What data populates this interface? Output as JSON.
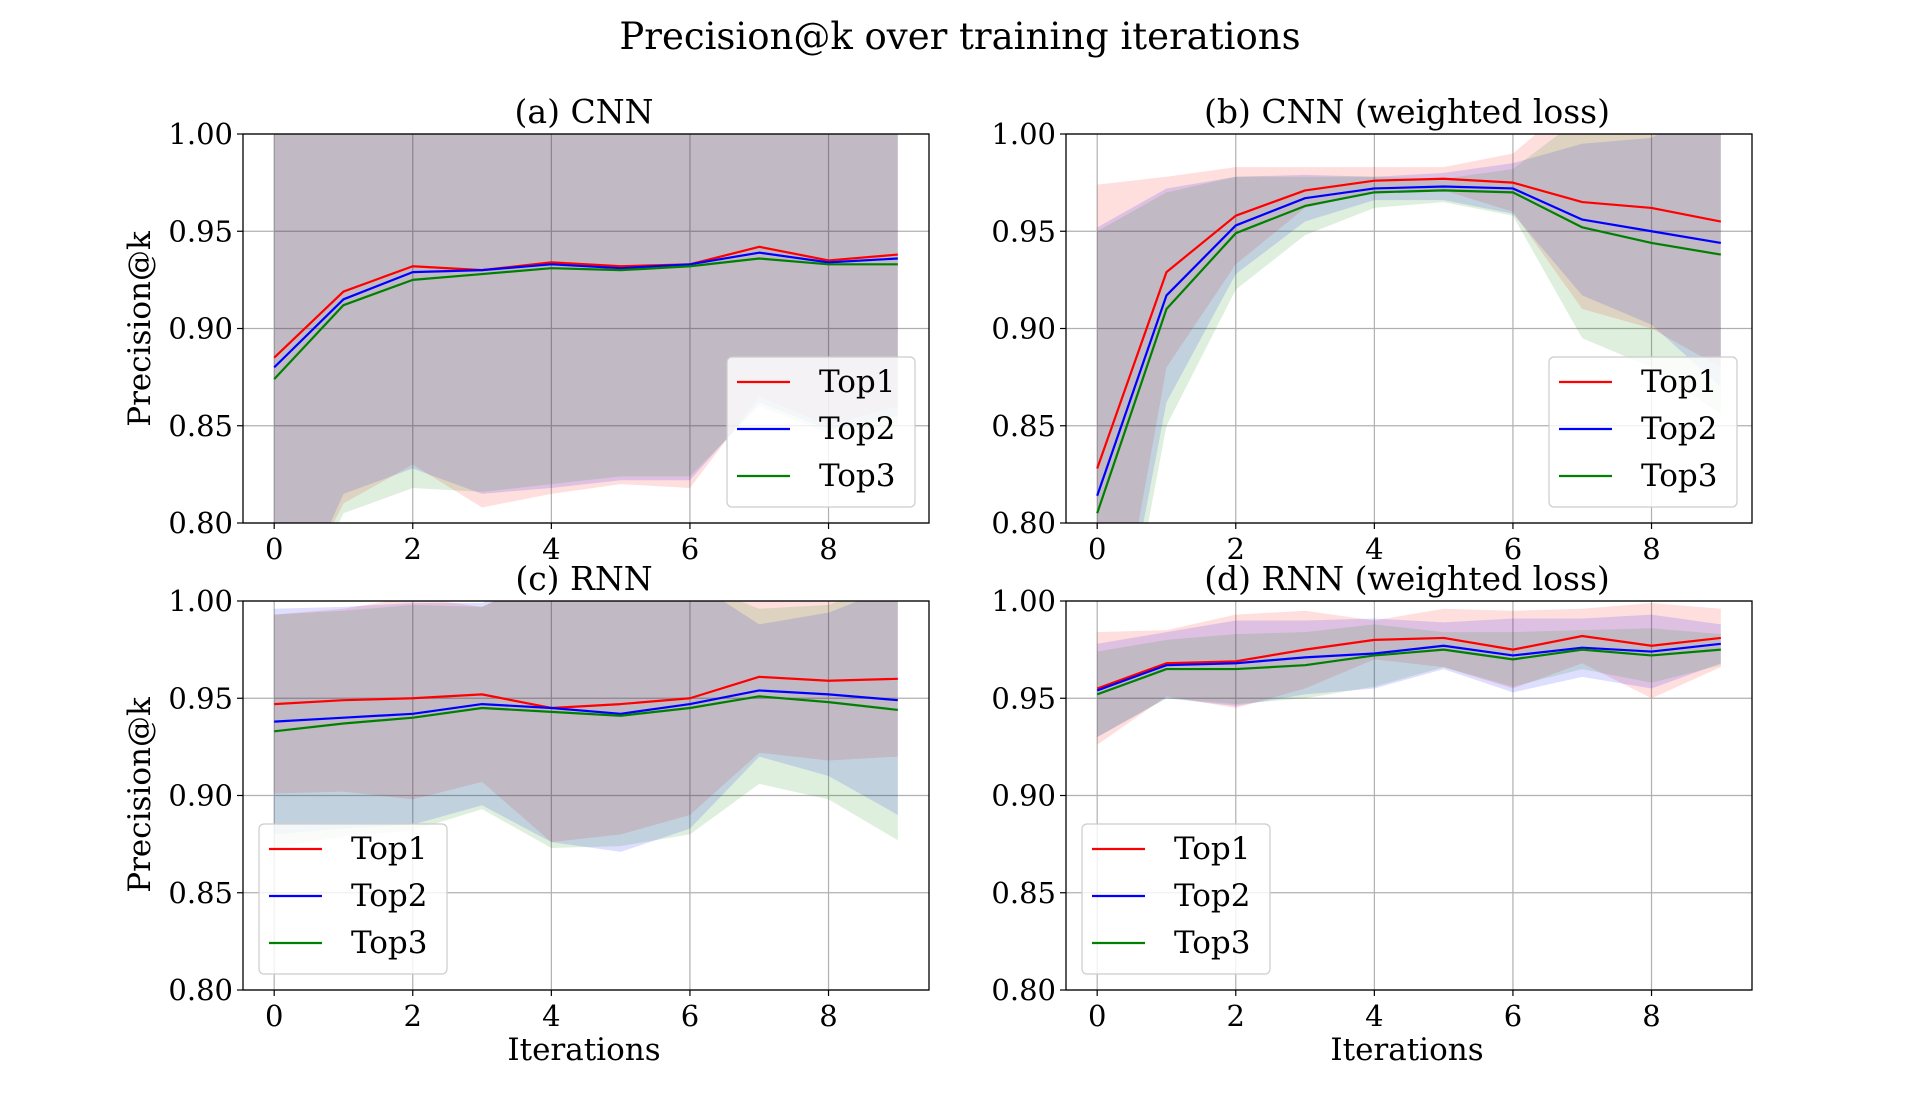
{
  "figure": {
    "title": "Precision@k over training iterations"
  },
  "chart_data": [
    {
      "type": "line",
      "title": "(a) CNN",
      "xlabel": "",
      "ylabel": "Precision@k",
      "x": [
        0,
        1,
        2,
        3,
        4,
        5,
        6,
        7,
        8,
        9
      ],
      "xticks": [
        0,
        2,
        4,
        6,
        8
      ],
      "xlim": [
        -0.45,
        9.45
      ],
      "ylim": [
        0.8,
        1.0
      ],
      "yticks": [
        0.8,
        0.85,
        0.9,
        0.95,
        1.0
      ],
      "grid": true,
      "legend": "lower-right",
      "series": [
        {
          "name": "Top1",
          "color": "#ff0000",
          "values": [
            0.885,
            0.919,
            0.932,
            0.93,
            0.934,
            0.932,
            0.933,
            0.942,
            0.935,
            0.938
          ],
          "lower": [
            0.74,
            0.81,
            0.83,
            0.808,
            0.815,
            0.82,
            0.818,
            0.865,
            0.85,
            0.86
          ],
          "upper": [
            1.03,
            1.028,
            1.034,
            1.052,
            1.053,
            1.044,
            1.048,
            1.019,
            1.02,
            1.016
          ]
        },
        {
          "name": "Top2",
          "color": "#0000ff",
          "values": [
            0.88,
            0.915,
            0.929,
            0.93,
            0.933,
            0.931,
            0.933,
            0.939,
            0.934,
            0.936
          ],
          "lower": [
            0.735,
            0.815,
            0.828,
            0.815,
            0.818,
            0.822,
            0.822,
            0.862,
            0.848,
            0.855
          ],
          "upper": [
            1.025,
            1.015,
            1.03,
            1.045,
            1.048,
            1.04,
            1.044,
            1.016,
            1.02,
            1.017
          ]
        },
        {
          "name": "Top3",
          "color": "#008000",
          "values": [
            0.874,
            0.912,
            0.925,
            0.928,
            0.931,
            0.93,
            0.932,
            0.936,
            0.933,
            0.933
          ],
          "lower": [
            0.73,
            0.805,
            0.818,
            0.816,
            0.82,
            0.824,
            0.824,
            0.86,
            0.846,
            0.85
          ],
          "upper": [
            1.018,
            1.019,
            1.032,
            1.04,
            1.042,
            1.036,
            1.04,
            1.012,
            1.02,
            1.016
          ]
        }
      ]
    },
    {
      "type": "line",
      "title": "(b) CNN (weighted loss)",
      "xlabel": "",
      "ylabel": "",
      "x": [
        0,
        1,
        2,
        3,
        4,
        5,
        6,
        7,
        8,
        9
      ],
      "xticks": [
        0,
        2,
        4,
        6,
        8
      ],
      "xlim": [
        -0.45,
        9.45
      ],
      "ylim": [
        0.8,
        1.0
      ],
      "yticks": [
        0.8,
        0.85,
        0.9,
        0.95,
        1.0
      ],
      "grid": true,
      "legend": "lower-right",
      "series": [
        {
          "name": "Top1",
          "color": "#ff0000",
          "values": [
            0.828,
            0.929,
            0.958,
            0.971,
            0.976,
            0.977,
            0.975,
            0.965,
            0.962,
            0.955
          ],
          "lower": [
            0.682,
            0.88,
            0.933,
            0.962,
            0.97,
            0.971,
            0.96,
            0.91,
            0.9,
            0.88
          ],
          "upper": [
            0.974,
            0.978,
            0.983,
            0.983,
            0.983,
            0.983,
            0.99,
            1.02,
            1.024,
            1.03
          ]
        },
        {
          "name": "Top2",
          "color": "#0000ff",
          "values": [
            0.814,
            0.917,
            0.953,
            0.967,
            0.972,
            0.973,
            0.972,
            0.956,
            0.95,
            0.944
          ],
          "lower": [
            0.676,
            0.862,
            0.928,
            0.955,
            0.966,
            0.966,
            0.959,
            0.917,
            0.902,
            0.87
          ],
          "upper": [
            0.952,
            0.972,
            0.978,
            0.979,
            0.978,
            0.98,
            0.985,
            0.995,
            0.998,
            1.018
          ]
        },
        {
          "name": "Top3",
          "color": "#008000",
          "values": [
            0.805,
            0.91,
            0.949,
            0.963,
            0.97,
            0.971,
            0.97,
            0.952,
            0.944,
            0.938
          ],
          "lower": [
            0.66,
            0.85,
            0.92,
            0.948,
            0.962,
            0.965,
            0.958,
            0.895,
            0.88,
            0.856
          ],
          "upper": [
            0.95,
            0.97,
            0.978,
            0.978,
            0.978,
            0.977,
            0.982,
            1.009,
            1.008,
            1.02
          ]
        }
      ]
    },
    {
      "type": "line",
      "title": "(c) RNN",
      "xlabel": "Iterations",
      "ylabel": "Precision@k",
      "x": [
        0,
        1,
        2,
        3,
        4,
        5,
        6,
        7,
        8,
        9
      ],
      "xticks": [
        0,
        2,
        4,
        6,
        8
      ],
      "xlim": [
        -0.45,
        9.45
      ],
      "ylim": [
        0.8,
        1.0
      ],
      "yticks": [
        0.8,
        0.85,
        0.9,
        0.95,
        1.0
      ],
      "grid": true,
      "legend": "lower-left",
      "series": [
        {
          "name": "Top1",
          "color": "#ff0000",
          "values": [
            0.947,
            0.949,
            0.95,
            0.952,
            0.945,
            0.947,
            0.95,
            0.961,
            0.959,
            0.96
          ],
          "lower": [
            0.901,
            0.902,
            0.898,
            0.907,
            0.876,
            0.88,
            0.89,
            0.922,
            0.918,
            0.92
          ],
          "upper": [
            0.993,
            0.996,
            1.002,
            0.997,
            1.014,
            1.014,
            1.01,
            1.0,
            1.0,
            1.0
          ]
        },
        {
          "name": "Top2",
          "color": "#0000ff",
          "values": [
            0.938,
            0.94,
            0.942,
            0.947,
            0.945,
            0.942,
            0.947,
            0.954,
            0.952,
            0.949
          ],
          "lower": [
            0.88,
            0.883,
            0.885,
            0.895,
            0.876,
            0.871,
            0.883,
            0.92,
            0.91,
            0.89
          ],
          "upper": [
            0.996,
            0.997,
            0.999,
            0.999,
            1.014,
            1.013,
            1.011,
            0.988,
            0.994,
            1.008
          ]
        },
        {
          "name": "Top3",
          "color": "#008000",
          "values": [
            0.933,
            0.937,
            0.94,
            0.945,
            0.943,
            0.941,
            0.945,
            0.951,
            0.948,
            0.944
          ],
          "lower": [
            0.873,
            0.879,
            0.882,
            0.893,
            0.873,
            0.874,
            0.88,
            0.906,
            0.898,
            0.877
          ],
          "upper": [
            0.993,
            0.995,
            0.998,
            0.997,
            1.013,
            1.008,
            1.01,
            0.996,
            0.998,
            1.011
          ]
        }
      ]
    },
    {
      "type": "line",
      "title": "(d) RNN (weighted loss)",
      "xlabel": "Iterations",
      "ylabel": "",
      "x": [
        0,
        1,
        2,
        3,
        4,
        5,
        6,
        7,
        8,
        9
      ],
      "xticks": [
        0,
        2,
        4,
        6,
        8
      ],
      "xlim": [
        -0.45,
        9.45
      ],
      "ylim": [
        0.8,
        1.0
      ],
      "yticks": [
        0.8,
        0.85,
        0.9,
        0.95,
        1.0
      ],
      "grid": true,
      "legend": "lower-left",
      "series": [
        {
          "name": "Top1",
          "color": "#ff0000",
          "values": [
            0.955,
            0.968,
            0.969,
            0.975,
            0.98,
            0.981,
            0.975,
            0.982,
            0.977,
            0.981
          ],
          "lower": [
            0.926,
            0.951,
            0.945,
            0.955,
            0.97,
            0.966,
            0.955,
            0.968,
            0.95,
            0.966
          ],
          "upper": [
            0.984,
            0.985,
            0.993,
            0.995,
            0.99,
            0.996,
            0.995,
            0.996,
            0.999,
            0.996
          ]
        },
        {
          "name": "Top2",
          "color": "#0000ff",
          "values": [
            0.954,
            0.967,
            0.968,
            0.971,
            0.973,
            0.977,
            0.972,
            0.976,
            0.974,
            0.978
          ],
          "lower": [
            0.93,
            0.95,
            0.946,
            0.952,
            0.955,
            0.965,
            0.953,
            0.961,
            0.955,
            0.968
          ],
          "upper": [
            0.978,
            0.984,
            0.99,
            0.99,
            0.991,
            0.989,
            0.991,
            0.991,
            0.993,
            0.988
          ]
        },
        {
          "name": "Top3",
          "color": "#008000",
          "values": [
            0.952,
            0.965,
            0.965,
            0.967,
            0.972,
            0.975,
            0.97,
            0.975,
            0.972,
            0.975
          ],
          "lower": [
            0.93,
            0.95,
            0.947,
            0.95,
            0.956,
            0.966,
            0.956,
            0.965,
            0.958,
            0.967
          ],
          "upper": [
            0.974,
            0.98,
            0.983,
            0.984,
            0.988,
            0.984,
            0.984,
            0.985,
            0.986,
            0.983
          ]
        }
      ]
    }
  ]
}
